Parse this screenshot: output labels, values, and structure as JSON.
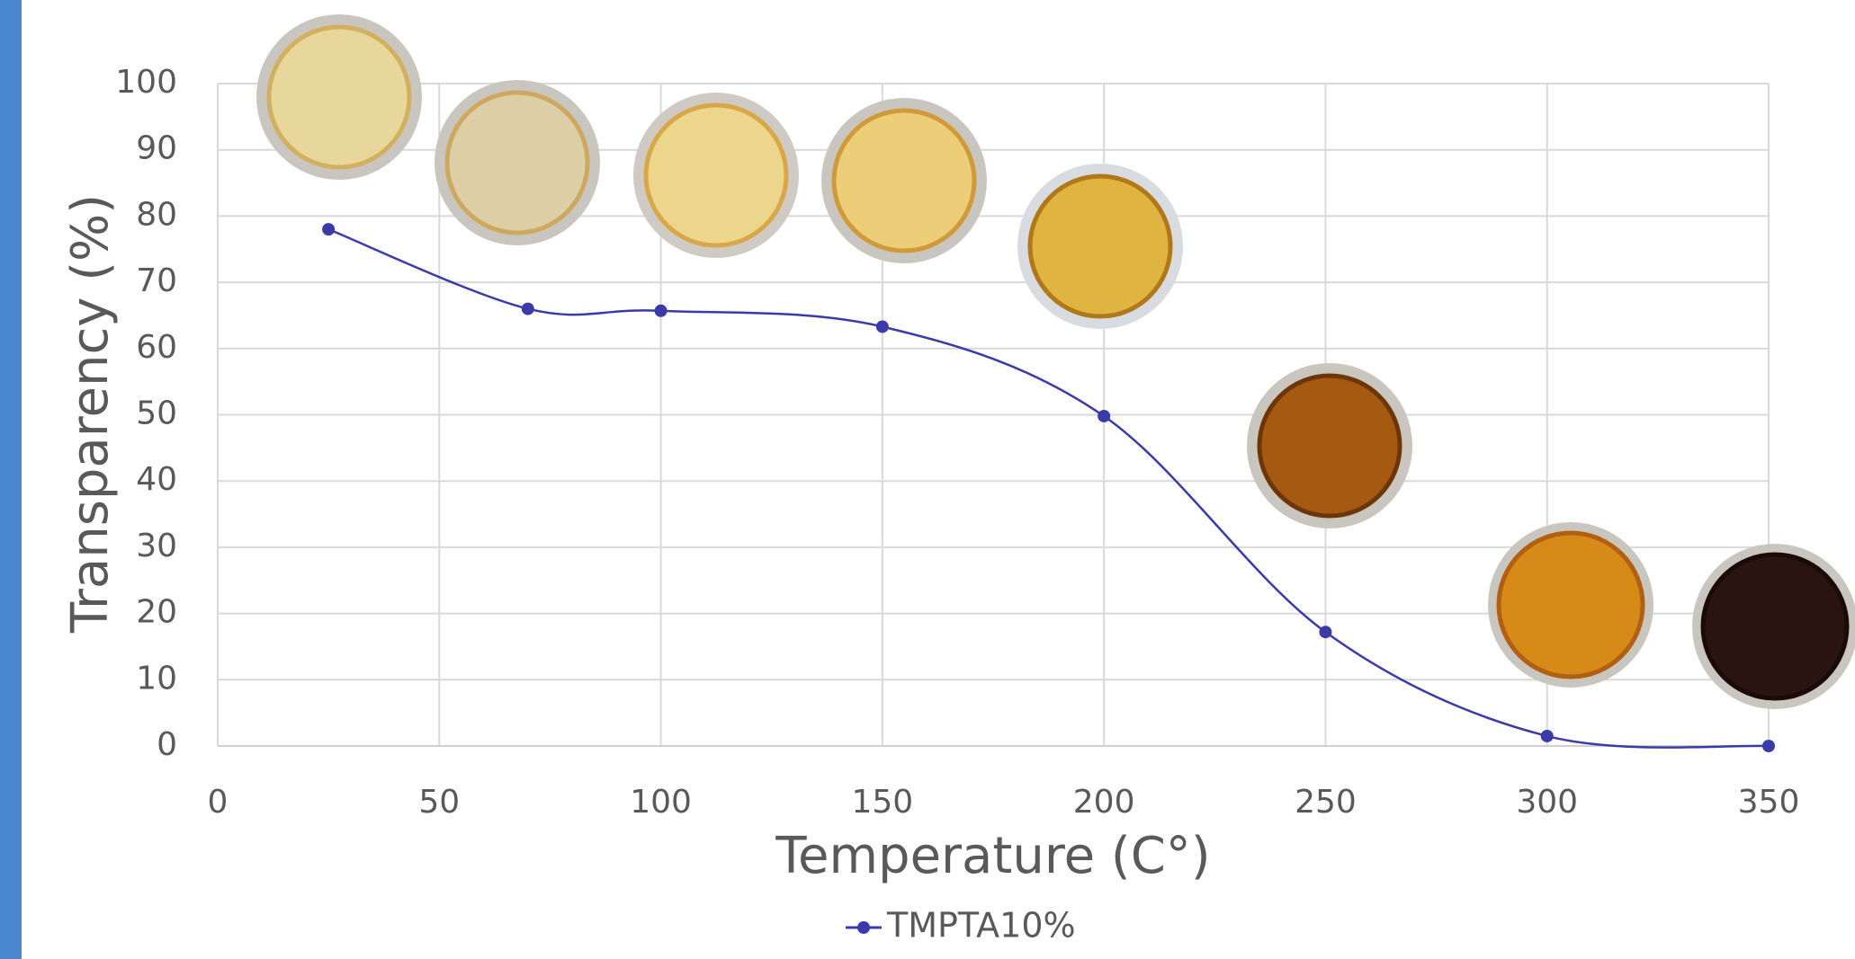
{
  "chart_data": {
    "type": "line",
    "x_label": "Temperature (C°)",
    "y_label": "Transparency  (%)",
    "x": [
      25,
      70,
      100,
      150,
      200,
      250,
      300,
      350
    ],
    "series": [
      {
        "name": "TMPTA10%",
        "color": "#3a3aa8",
        "values": [
          78,
          66,
          65.7,
          63.3,
          49.8,
          17.2,
          1.5,
          0
        ]
      }
    ],
    "xlim": [
      0,
      350
    ],
    "xticks": [
      0,
      50,
      100,
      150,
      200,
      250,
      300,
      350
    ],
    "ylim": [
      0,
      100
    ],
    "yticks": [
      0,
      10,
      20,
      30,
      40,
      50,
      60,
      70,
      80,
      90,
      100
    ],
    "grid": true,
    "smooth": true,
    "legend": "bottom"
  }
}
